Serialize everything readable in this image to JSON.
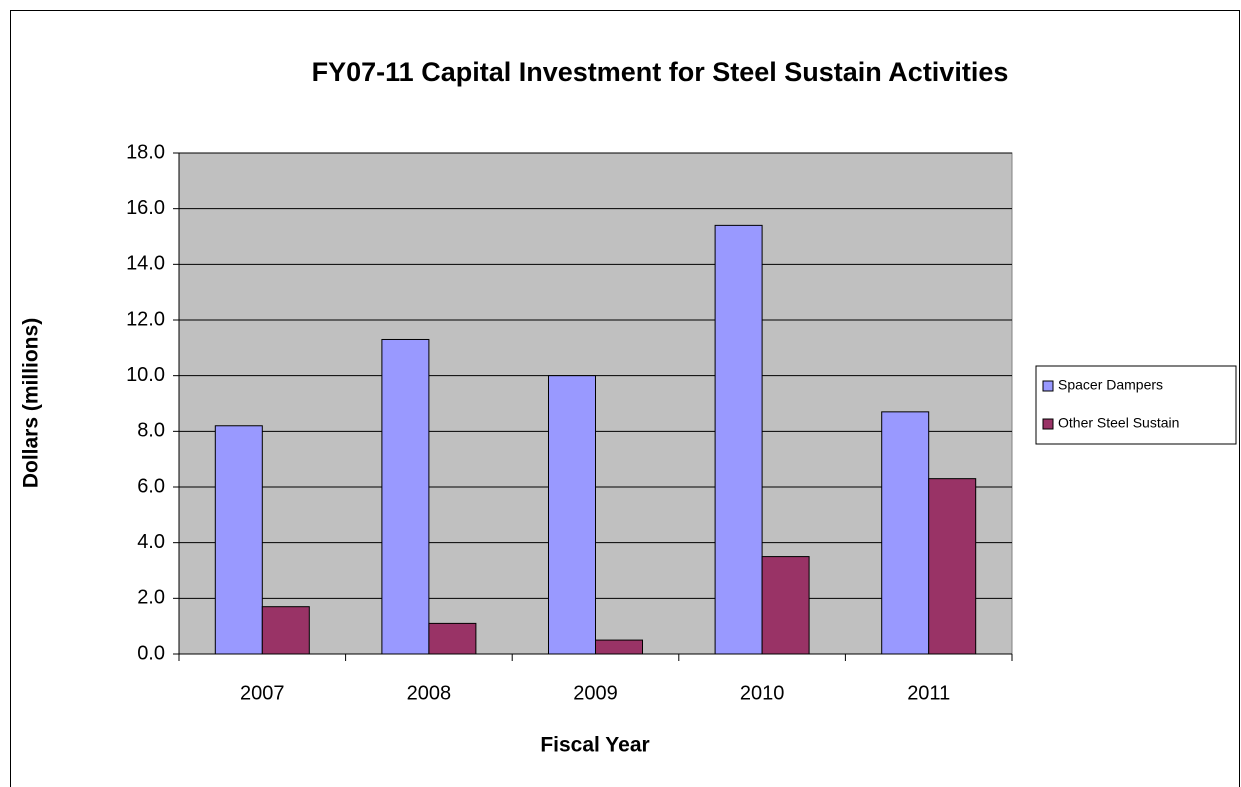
{
  "chart_data": {
    "type": "bar",
    "title": "FY07-11 Capital Investment for Steel Sustain Activities",
    "x_label": "Fiscal Year",
    "y_label": "Dollars (millions)",
    "categories": [
      "2007",
      "2008",
      "2009",
      "2010",
      "2011"
    ],
    "series": [
      {
        "name": "Spacer Dampers",
        "color": "#9999ff",
        "values": [
          8.2,
          11.3,
          10.0,
          15.4,
          8.7
        ]
      },
      {
        "name": "Other Steel Sustain",
        "color": "#993366",
        "values": [
          1.7,
          1.1,
          0.5,
          3.5,
          6.3
        ]
      }
    ],
    "ylim": [
      0,
      18
    ],
    "yticks": [
      {
        "value": 0,
        "label": "0.0"
      },
      {
        "value": 2,
        "label": "2.0"
      },
      {
        "value": 4,
        "label": "4.0"
      },
      {
        "value": 6,
        "label": "6.0"
      },
      {
        "value": 8,
        "label": "8.0"
      },
      {
        "value": 10,
        "label": "10.0"
      },
      {
        "value": 12,
        "label": "12.0"
      },
      {
        "value": 14,
        "label": "14.0"
      },
      {
        "value": 16,
        "label": "16.0"
      },
      {
        "value": 18,
        "label": "18.0"
      }
    ],
    "grid": true,
    "legend": "right"
  }
}
